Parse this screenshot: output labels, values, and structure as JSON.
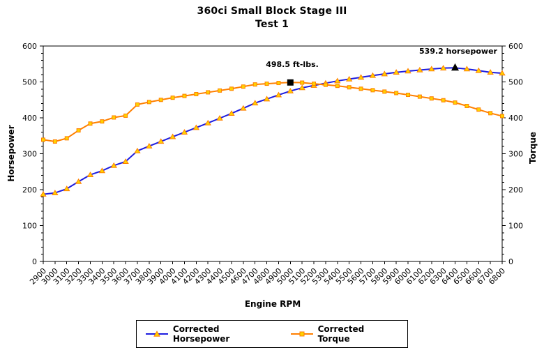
{
  "chart_data": {
    "type": "line",
    "title": "360ci Small Block Stage III",
    "subtitle": "Test 1",
    "xlabel": "Engine RPM",
    "ylabel_left": "Horsepower",
    "ylabel_right": "Torque",
    "grid": false,
    "legend_position": "bottom",
    "background_color": "#FFFFFF",
    "y_axis": {
      "min": 0,
      "max": 600,
      "major_tick": 100,
      "minor_tick": 20,
      "tick_labels": [
        "0",
        "100",
        "200",
        "300",
        "400",
        "500",
        "600"
      ]
    },
    "x_categories": [
      "2900",
      "3000",
      "3100",
      "3200",
      "3300",
      "3400",
      "3500",
      "3600",
      "3700",
      "3800",
      "3900",
      "4000",
      "4100",
      "4200",
      "4300",
      "4400",
      "4500",
      "4600",
      "4700",
      "4800",
      "4900",
      "5000",
      "5100",
      "5200",
      "5300",
      "5400",
      "5500",
      "5600",
      "5700",
      "5800",
      "5900",
      "6000",
      "6100",
      "6200",
      "6300",
      "6400",
      "6500",
      "6600",
      "6700",
      "6800"
    ],
    "series": [
      {
        "name": "Corrected Horsepower",
        "axis": "left",
        "marker": "triangle",
        "color": "#1C1CE0",
        "marker_fill": "#FFD200",
        "marker_stroke": "#FF8000",
        "values": [
          187.2,
          190.8,
          202.4,
          222.4,
          241.3,
          252.5,
          267.2,
          278.3,
          307.9,
          321.2,
          334.2,
          347.3,
          359.9,
          372.7,
          385.6,
          398.8,
          412.2,
          426.6,
          441.2,
          452.4,
          463.7,
          474.6,
          483.6,
          490.1,
          496.5,
          502.8,
          507.9,
          512.8,
          517.7,
          522.3,
          526.8,
          530.1,
          533.1,
          535.9,
          538.5,
          539.2,
          535.9,
          531.5,
          526.8,
          524.3
        ]
      },
      {
        "name": "Corrected Torque",
        "axis": "right",
        "marker": "square",
        "color": "#FF7F00",
        "marker_fill": "#FFD200",
        "marker_stroke": "#FF8000",
        "values": [
          339,
          334,
          343,
          365,
          384,
          390,
          401,
          406,
          437,
          444,
          450,
          456,
          461,
          466,
          471,
          476,
          481,
          487,
          493,
          495,
          497,
          498.5,
          498,
          495,
          492,
          489,
          485,
          481,
          477,
          473,
          469,
          464,
          459,
          454,
          449,
          442.5,
          433,
          423,
          413,
          405
        ]
      }
    ],
    "annotations": {
      "peak_torque": {
        "label": "498.5 ft-lbs.",
        "rpm": "5000",
        "value": 498.5,
        "marker": "black-square",
        "marker_color": "#000000"
      },
      "peak_horsepower": {
        "label": "539.2 horsepower",
        "rpm": "6400",
        "value": 539.2,
        "marker": "black-triangle",
        "marker_color": "#000000"
      }
    }
  }
}
